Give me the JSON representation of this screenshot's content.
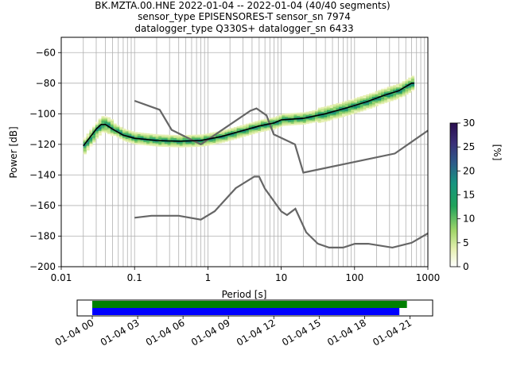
{
  "title_lines": [
    "BK.MZTA.00.HNE   2022-01-04 -- 2022-01-04  (40/40 segments)",
    "sensor_type EPISENSORES-T sensor_sn 7974",
    "datalogger_type Q330S+ datalogger_sn 6433"
  ],
  "chart_data": {
    "type": "heatmap",
    "title": "BK.MZTA.00.HNE   2022-01-04 -- 2022-01-04  (40/40 segments)",
    "xlabel": "Period [s]",
    "ylabel": "Power [dB]",
    "xscale": "log",
    "xlim": [
      0.01,
      1000
    ],
    "ylim": [
      -200,
      -50
    ],
    "grid": true,
    "x_ticks": [
      {
        "v": 0.01,
        "label": "0.01"
      },
      {
        "v": 0.1,
        "label": "0.1"
      },
      {
        "v": 1,
        "label": "1"
      },
      {
        "v": 10,
        "label": "10"
      },
      {
        "v": 100,
        "label": "100"
      },
      {
        "v": 1000,
        "label": "1000"
      }
    ],
    "y_ticks": [
      {
        "v": -60,
        "label": "−60"
      },
      {
        "v": -80,
        "label": "−80"
      },
      {
        "v": -100,
        "label": "−100"
      },
      {
        "v": -120,
        "label": "−120"
      },
      {
        "v": -140,
        "label": "−140"
      },
      {
        "v": -160,
        "label": "−160"
      },
      {
        "v": -180,
        "label": "−180"
      },
      {
        "v": -200,
        "label": "−200"
      }
    ],
    "psd_mode_curve": [
      [
        0.02,
        -121
      ],
      [
        0.025,
        -115
      ],
      [
        0.03,
        -110
      ],
      [
        0.035,
        -107
      ],
      [
        0.04,
        -107
      ],
      [
        0.05,
        -110
      ],
      [
        0.07,
        -114
      ],
      [
        0.1,
        -116
      ],
      [
        0.2,
        -117.5
      ],
      [
        0.4,
        -118
      ],
      [
        0.8,
        -117.5
      ],
      [
        1.5,
        -115
      ],
      [
        3,
        -111
      ],
      [
        5,
        -108
      ],
      [
        8,
        -106
      ],
      [
        10,
        -104
      ],
      [
        20,
        -103
      ],
      [
        40,
        -100
      ],
      [
        80,
        -96
      ],
      [
        150,
        -92
      ],
      [
        250,
        -88
      ],
      [
        400,
        -85
      ],
      [
        600,
        -80
      ],
      [
        650,
        -80
      ]
    ],
    "new_high_noise_model": [
      [
        0.1,
        -91.5
      ],
      [
        0.22,
        -97.4
      ],
      [
        0.32,
        -110.5
      ],
      [
        0.8,
        -120
      ],
      [
        3.8,
        -98
      ],
      [
        4.6,
        -96.5
      ],
      [
        6.3,
        -101
      ],
      [
        7.9,
        -113.5
      ],
      [
        15.4,
        -120
      ],
      [
        20,
        -138.5
      ],
      [
        354.8,
        -126
      ],
      [
        1000,
        -111
      ]
    ],
    "new_low_noise_model": [
      [
        0.1,
        -168
      ],
      [
        0.17,
        -166.7
      ],
      [
        0.4,
        -166.7
      ],
      [
        0.8,
        -169.2
      ],
      [
        1.24,
        -163.7
      ],
      [
        2.4,
        -148.6
      ],
      [
        4.3,
        -141.1
      ],
      [
        5,
        -141.1
      ],
      [
        6,
        -149
      ],
      [
        10,
        -163.8
      ],
      [
        12,
        -166.2
      ],
      [
        15.6,
        -162.1
      ],
      [
        21.9,
        -177.5
      ],
      [
        31.6,
        -185
      ],
      [
        45,
        -187.5
      ],
      [
        70,
        -187.5
      ],
      [
        101,
        -185
      ],
      [
        154,
        -185
      ],
      [
        328,
        -187.5
      ],
      [
        600,
        -184.4
      ],
      [
        1000,
        -178.2
      ]
    ],
    "colorbar": {
      "label": "[%]",
      "range": [
        0,
        30
      ],
      "ticks": [
        "0",
        "5",
        "10",
        "15",
        "20",
        "25",
        "30"
      ],
      "colormap": "pqlx"
    },
    "timeline": {
      "x_ticks": [
        "01-04 00",
        "01-04 03",
        "01-04 06",
        "01-04 09",
        "01-04 12",
        "01-04 15",
        "01-04 18",
        "01-04 21"
      ],
      "x_tick_hours": [
        0,
        3,
        6,
        9,
        12,
        15,
        18,
        21
      ],
      "xlim_hours": [
        -1,
        22.5
      ],
      "bars": [
        {
          "color": "#008000",
          "start_hour": 0,
          "end_hour": 20.8
        },
        {
          "color": "#0000ff",
          "start_hour": 0,
          "end_hour": 20.3
        }
      ]
    }
  },
  "colors": {
    "grid": "#b0b0b0",
    "noise_model": "#666666",
    "mode_curve": "#000000"
  }
}
